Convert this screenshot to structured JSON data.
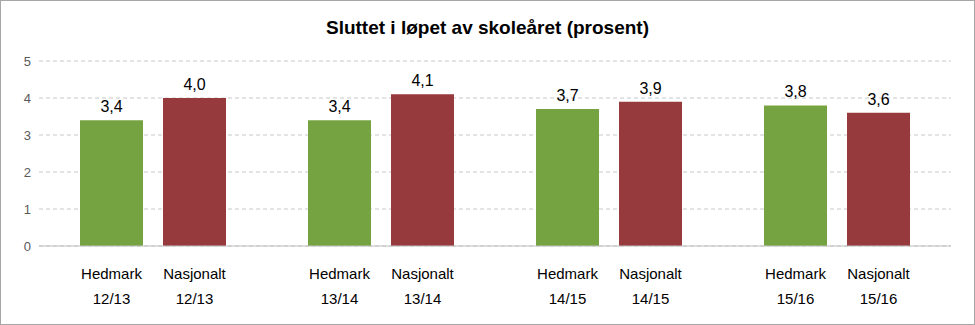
{
  "chart_data": {
    "type": "bar",
    "title": "Sluttet i løpet av skoleåret (prosent)",
    "categories": [
      "12/13",
      "13/14",
      "14/15",
      "15/16"
    ],
    "series": [
      {
        "name": "Hedmark",
        "color": "#76a342",
        "values": [
          3.4,
          3.4,
          3.7,
          3.8
        ],
        "value_labels": [
          "3,4",
          "3,4",
          "3,7",
          "3,8"
        ]
      },
      {
        "name": "Nasjonalt",
        "color": "#973a3e",
        "values": [
          4.0,
          4.1,
          3.9,
          3.6
        ],
        "value_labels": [
          "4,0",
          "4,1",
          "3,9",
          "3,6"
        ]
      }
    ],
    "ylim": [
      0,
      5
    ],
    "yticks": [
      0,
      1,
      2,
      3,
      4,
      5
    ],
    "grid": true,
    "data_labels": true
  }
}
